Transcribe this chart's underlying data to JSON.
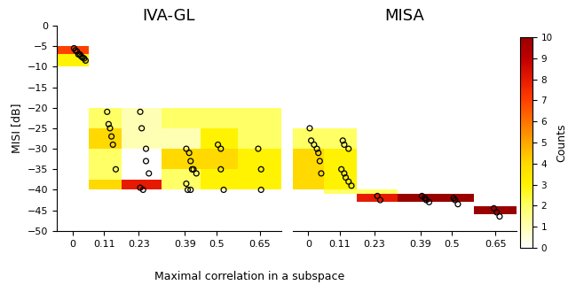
{
  "title_left": "IVA-GL",
  "title_right": "MISA",
  "xlabel": "Maximal correlation in a subspace",
  "ylabel": "MISI [dB]",
  "colorbar_label": "Counts",
  "ylim": [
    -50,
    0
  ],
  "yticks": [
    0,
    -5,
    -10,
    -15,
    -20,
    -25,
    -30,
    -35,
    -40,
    -45,
    -50
  ],
  "xtick_labels": [
    "0",
    "0.11",
    "0.23",
    "0.39",
    "0.5",
    "0.65"
  ],
  "x_ticks": [
    0.0,
    0.11,
    0.23,
    0.39,
    0.5,
    0.65
  ],
  "x_edges": [
    -0.055,
    0.055,
    0.17,
    0.31,
    0.445,
    0.575,
    0.725
  ],
  "colormap_max": 10,
  "iva_rects": [
    [
      -0.055,
      0.055,
      -7,
      -5,
      7
    ],
    [
      -0.055,
      0.055,
      -10,
      -7,
      3
    ],
    [
      0.055,
      0.17,
      -25,
      -20,
      2
    ],
    [
      0.055,
      0.17,
      -30,
      -25,
      4
    ],
    [
      0.055,
      0.17,
      -37.5,
      -30,
      2
    ],
    [
      0.055,
      0.17,
      -40,
      -37.5,
      4
    ],
    [
      0.17,
      0.31,
      -30,
      -20,
      1
    ],
    [
      0.17,
      0.31,
      -40,
      -37.5,
      8
    ],
    [
      0.31,
      0.725,
      -25,
      -20,
      2
    ],
    [
      0.31,
      0.445,
      -30,
      -25,
      1
    ],
    [
      0.31,
      0.445,
      -35,
      -30,
      4
    ],
    [
      0.31,
      0.445,
      -40,
      -35,
      2
    ],
    [
      0.445,
      0.575,
      -30,
      -25,
      3
    ],
    [
      0.445,
      0.575,
      -35,
      -30,
      4
    ],
    [
      0.445,
      0.575,
      -40,
      -35,
      3
    ],
    [
      0.575,
      0.725,
      -30,
      -25,
      2
    ],
    [
      0.575,
      0.725,
      -35,
      -30,
      3
    ],
    [
      0.575,
      0.725,
      -40,
      -35,
      3
    ]
  ],
  "misa_rects": [
    [
      -0.055,
      0.17,
      -30,
      -25,
      2
    ],
    [
      -0.055,
      0.055,
      -35,
      -30,
      4
    ],
    [
      -0.055,
      0.055,
      -40,
      -35,
      4
    ],
    [
      0.055,
      0.17,
      -35,
      -30,
      3
    ],
    [
      0.055,
      0.17,
      -40,
      -35,
      3
    ],
    [
      0.17,
      0.31,
      -43,
      -41,
      8
    ],
    [
      0.055,
      0.31,
      -41,
      -40,
      2
    ],
    [
      0.31,
      0.575,
      -43,
      -41,
      10
    ],
    [
      0.575,
      0.725,
      -46,
      -44,
      10
    ]
  ],
  "iva_scatter_x": [
    0.005,
    0.01,
    0.015,
    0.02,
    0.025,
    0.03,
    0.035,
    0.04,
    0.045,
    0.12,
    0.125,
    0.13,
    0.135,
    0.14,
    0.15,
    0.24,
    0.255,
    0.255,
    0.265,
    0.395,
    0.405,
    0.41,
    0.415,
    0.42,
    0.43,
    0.235,
    0.505,
    0.515,
    0.395,
    0.235,
    0.245,
    0.41,
    0.515,
    0.525,
    0.645,
    0.655,
    0.4,
    0.655
  ],
  "iva_scatter_y": [
    -5.5,
    -6.0,
    -6.3,
    -7.0,
    -7.0,
    -7.5,
    -7.8,
    -8.0,
    -8.5,
    -21,
    -24,
    -25,
    -27,
    -29,
    -35,
    -25,
    -30,
    -33,
    -36,
    -30,
    -31,
    -33,
    -35,
    -35,
    -36,
    -21,
    -29,
    -30,
    -38.5,
    -39.5,
    -40,
    -40,
    -35,
    -40,
    -30,
    -35,
    -40,
    -40
  ],
  "misa_scatter_x": [
    0.01,
    0.02,
    0.03,
    0.035,
    0.04,
    0.045,
    0.005,
    0.12,
    0.125,
    0.14,
    0.115,
    0.125,
    0.13,
    0.14,
    0.15,
    0.24,
    0.25,
    0.395,
    0.405,
    0.41,
    0.42,
    0.505,
    0.51,
    0.52,
    0.645,
    0.655,
    0.665
  ],
  "misa_scatter_y": [
    -28,
    -29,
    -30,
    -31,
    -33,
    -36,
    -25,
    -28,
    -29,
    -30,
    -35,
    -36,
    -37,
    -38,
    -39,
    -41.5,
    -42.5,
    -41.5,
    -42.0,
    -42.5,
    -43.0,
    -42.0,
    -42.5,
    -43.5,
    -44.5,
    -45.5,
    -46.5
  ]
}
